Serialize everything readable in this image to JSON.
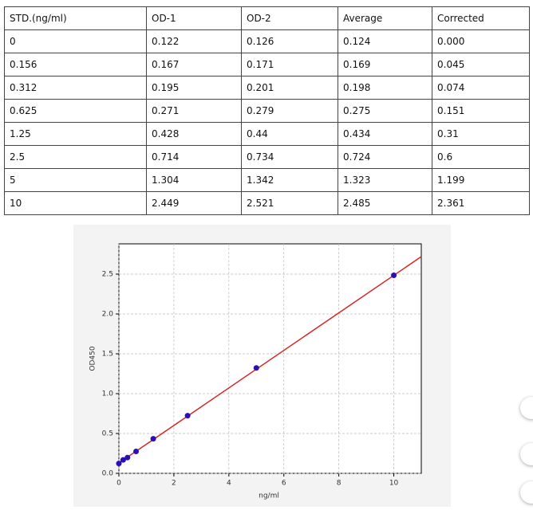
{
  "table": {
    "header": [
      "STD.(ng/ml)",
      "OD-1",
      "OD-2",
      "Average",
      "Corrected"
    ],
    "rows": [
      [
        "0",
        "0.122",
        "0.126",
        "0.124",
        "0.000"
      ],
      [
        "0.156",
        "0.167",
        "0.171",
        "0.169",
        "0.045"
      ],
      [
        "0.312",
        "0.195",
        "0.201",
        "0.198",
        "0.074"
      ],
      [
        "0.625",
        "0.271",
        "0.279",
        "0.275",
        "0.151"
      ],
      [
        "1.25",
        "0.428",
        "0.44",
        "0.434",
        "0.31"
      ],
      [
        "2.5",
        "0.714",
        "0.734",
        "0.724",
        "0.6"
      ],
      [
        "5",
        "1.304",
        "1.342",
        "1.323",
        "1.199"
      ],
      [
        "10",
        "2.449",
        "2.521",
        "2.485",
        "2.361"
      ]
    ]
  },
  "chart_data": {
    "type": "scatter",
    "x_label": "ng/ml",
    "y_label": "OD450",
    "points": {
      "color": "#2b0fb5",
      "x": [
        0,
        0.156,
        0.312,
        0.625,
        1.25,
        2.5,
        5,
        10
      ],
      "y": [
        0.124,
        0.169,
        0.198,
        0.275,
        0.434,
        0.724,
        1.323,
        2.485
      ]
    },
    "fit_line": {
      "color": "#d62728",
      "x": [
        0,
        11
      ],
      "y": [
        0.13,
        2.72
      ]
    },
    "xlim": [
      0,
      11
    ],
    "ylim": [
      0,
      2.88
    ],
    "xticks": [
      0,
      2,
      4,
      6,
      8,
      10
    ],
    "yticks": [
      {
        "value": 0,
        "label": "0.0"
      },
      {
        "value": 0.5,
        "label": "0.5"
      },
      {
        "value": 1,
        "label": "1.0"
      },
      {
        "value": 1.5,
        "label": "1.5"
      },
      {
        "value": 2,
        "label": "2.0"
      },
      {
        "value": 2.5,
        "label": "2.5"
      }
    ],
    "grid": true
  }
}
